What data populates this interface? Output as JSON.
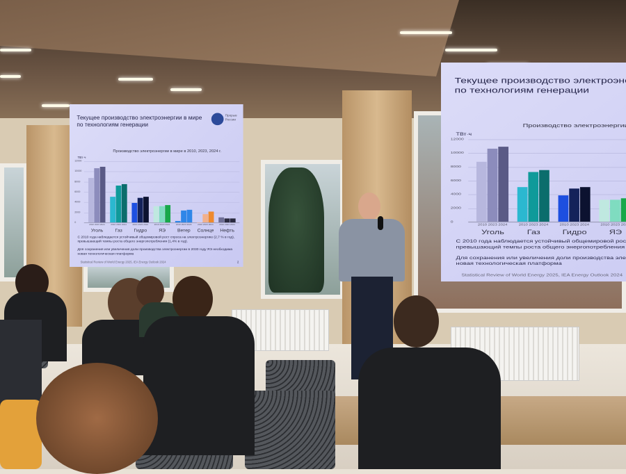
{
  "slide": {
    "title": "Текущее производство электроэнергии в мире по технологиям генерации",
    "logo_text": "Прорыв России",
    "chart_title": "Производство электроэнергии в мире в 2010, 2023, 2024 г.",
    "unit": "ТВт·ч",
    "y_ticks": [
      "0",
      "2000",
      "4000",
      "6000",
      "8000",
      "10000",
      "12000"
    ],
    "years_label": "2010 2023 2024",
    "categories": [
      "Уголь",
      "Газ",
      "Гидро",
      "ЯЭ",
      "Ветер",
      "Солнце",
      "Нефть"
    ],
    "bar_levels_twh": [
      [
        8700,
        10600,
        10900
      ],
      [
        5000,
        7200,
        7500
      ],
      [
        3800,
        4800,
        5000
      ],
      [
        3200,
        3200,
        3400
      ],
      [
        300,
        2300,
        2500
      ],
      [
        30,
        1600,
        2100
      ],
      [
        1000,
        800,
        800
      ]
    ],
    "bar_colors": [
      [
        "#b7b7de",
        "#8c8cbc",
        "#5a5a86"
      ],
      [
        "#2bb8d0",
        "#0f9a9a",
        "#0b6d6c"
      ],
      [
        "#1d4fe0",
        "#14225a",
        "#0c1230"
      ],
      [
        "#bfe8e0",
        "#7fdcc0",
        "#18a84a"
      ],
      [
        "#2f86e8",
        "#2f86e8",
        "#2f86e8"
      ],
      [
        "#f2b08c",
        "#f2b08c",
        "#ee8a2e"
      ],
      [
        "#6e6e96",
        "#2a2a40",
        "#2a2a40"
      ]
    ],
    "bullet1": "С 2010 года наблюдается устойчивый общемировой рост спроса на электроэнергию (2,7 % в год), превышающий темпы роста общего энергопотребления (1,4% в год).",
    "bullet2": "Для сохранения или увеличения доли производства электроэнергии в 2030 году ЯЭ необходима новая технологическая платформа",
    "source": "Statistical Review of World Energy 2025, IEA Energy Outlook 2024",
    "page": "2"
  }
}
